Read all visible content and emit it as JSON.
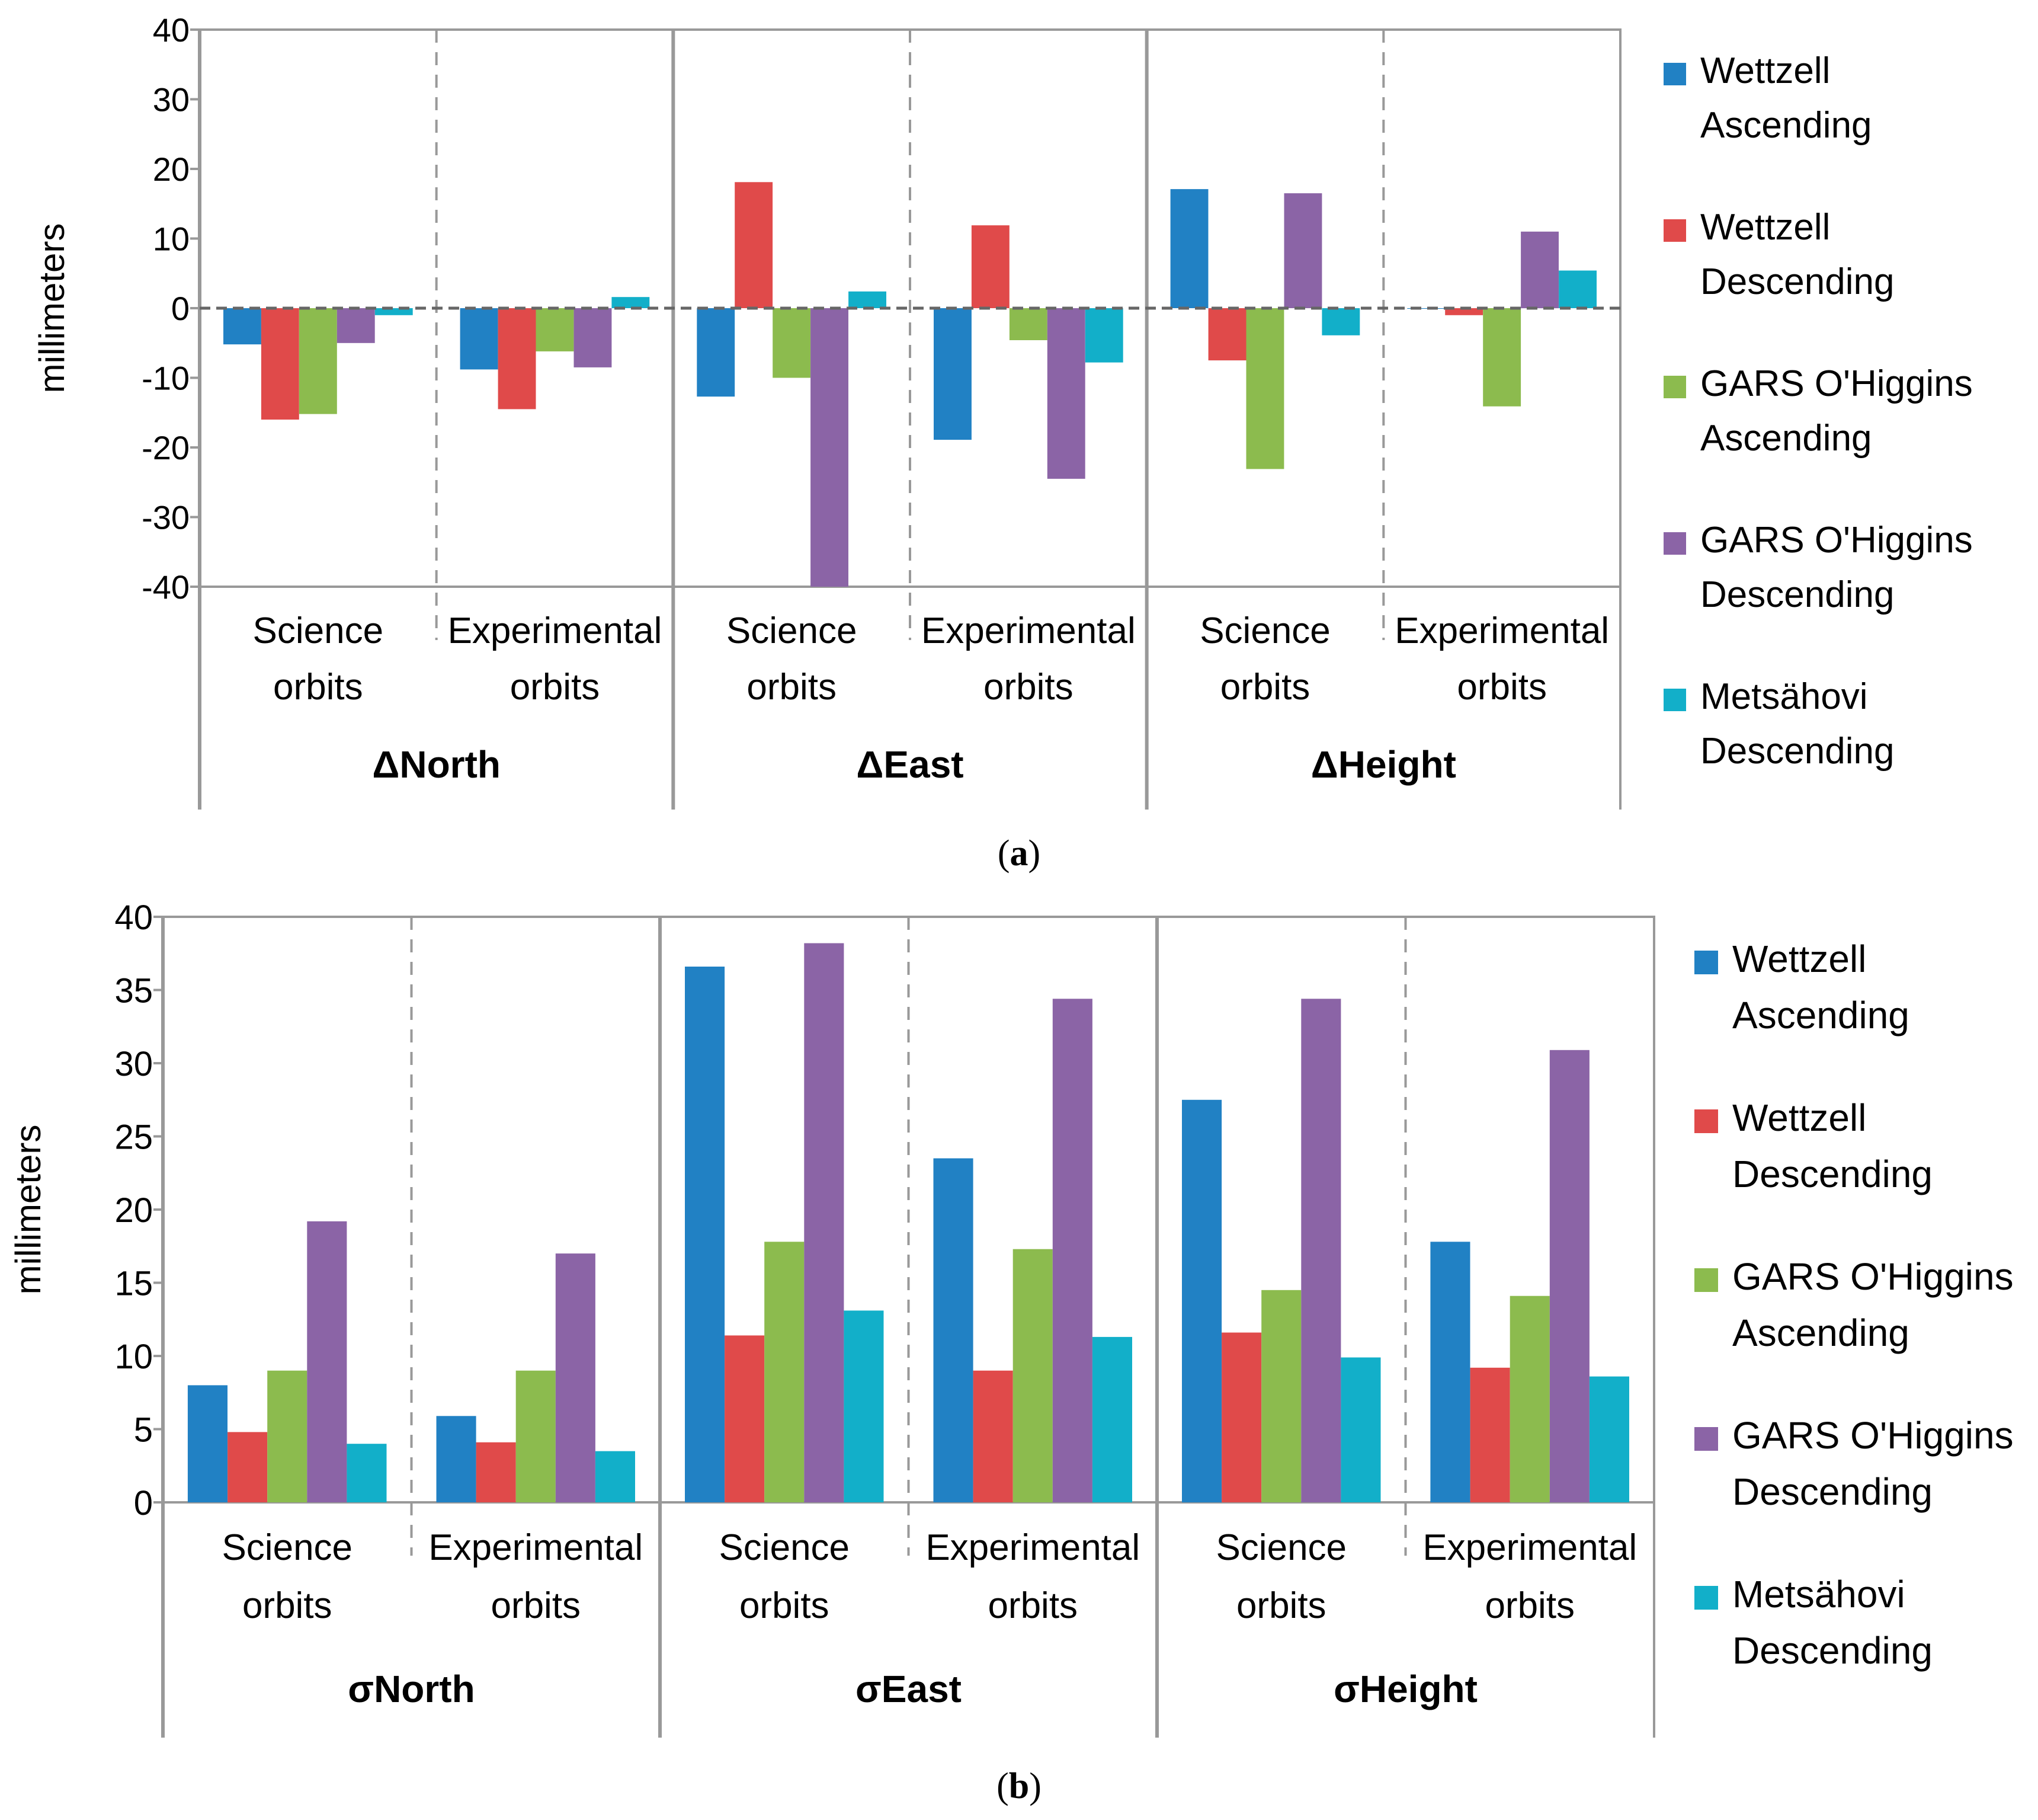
{
  "colors": {
    "series": [
      "#2181C4",
      "#E04A4A",
      "#8CBB4E",
      "#8B64A6",
      "#12AFC9"
    ],
    "grid": "#999999",
    "axis": "#666666",
    "text": "#000000"
  },
  "series_names": [
    [
      "Wettzell",
      "Ascending"
    ],
    [
      "Wettzell",
      "Descending"
    ],
    [
      "GARS O'Higgins",
      "Ascending"
    ],
    [
      "GARS O'Higgins",
      "Descending"
    ],
    [
      "Metsähovi",
      "Descending"
    ]
  ],
  "panel_a_label": {
    "open": "(",
    "letter": "a",
    "close": ")"
  },
  "panel_b_label": {
    "open": "(",
    "letter": "b",
    "close": ")"
  },
  "chart_data": [
    {
      "panel": "a",
      "type": "bar",
      "ylabel": "millimeters",
      "ylim": [
        -40,
        40
      ],
      "yticks": [
        "40",
        "30",
        "20",
        "10",
        "0",
        "-10",
        "-20",
        "-30",
        "-40"
      ],
      "groups": [
        "ΔNorth",
        "ΔEast",
        "ΔHeight"
      ],
      "subcategories": [
        [
          "Science",
          "orbits"
        ],
        [
          "Experimental",
          "orbits"
        ]
      ],
      "categories": [
        "ΔNorth Science orbits",
        "ΔNorth Experimental orbits",
        "ΔEast Science orbits",
        "ΔEast Experimental orbits",
        "ΔHeight Science orbits",
        "ΔHeight Experimental orbits"
      ],
      "series": [
        {
          "name": "Wettzell Ascending",
          "values": [
            -5.2,
            -8.8,
            -12.7,
            -18.9,
            17.1,
            0.0
          ]
        },
        {
          "name": "Wettzell Descending",
          "values": [
            -16.0,
            -14.5,
            18.1,
            11.9,
            -7.5,
            -1.0
          ]
        },
        {
          "name": "GARS O'Higgins Ascending",
          "values": [
            -15.2,
            -6.2,
            -10.0,
            -4.6,
            -23.1,
            -14.1
          ]
        },
        {
          "name": "GARS O'Higgins Descending",
          "values": [
            -5.0,
            -8.5,
            -40.0,
            -24.5,
            16.5,
            11.0
          ]
        },
        {
          "name": "Metsähovi Descending",
          "values": [
            -1.0,
            1.6,
            2.4,
            -7.8,
            -3.9,
            5.4
          ]
        }
      ]
    },
    {
      "panel": "b",
      "type": "bar",
      "ylabel": "millimeters",
      "ylim": [
        0,
        40
      ],
      "yticks": [
        "40",
        "35",
        "30",
        "25",
        "20",
        "15",
        "10",
        "5",
        "0"
      ],
      "groups": [
        "σNorth",
        "σEast",
        "σHeight"
      ],
      "subcategories": [
        [
          "Science",
          "orbits"
        ],
        [
          "Experimental",
          "orbits"
        ]
      ],
      "categories": [
        "σNorth Science orbits",
        "σNorth Experimental orbits",
        "σEast Science orbits",
        "σEast Experimental orbits",
        "σHeight Science orbits",
        "σHeight Experimental orbits"
      ],
      "series": [
        {
          "name": "Wettzell Ascending",
          "values": [
            8.0,
            5.9,
            36.6,
            23.5,
            27.5,
            17.8
          ]
        },
        {
          "name": "Wettzell Descending",
          "values": [
            4.8,
            4.1,
            11.4,
            9.0,
            11.6,
            9.2
          ]
        },
        {
          "name": "GARS O'Higgins Ascending",
          "values": [
            9.0,
            9.0,
            17.8,
            17.3,
            14.5,
            14.1
          ]
        },
        {
          "name": "GARS O'Higgins Descending",
          "values": [
            19.2,
            17.0,
            38.2,
            34.4,
            34.4,
            30.9
          ]
        },
        {
          "name": "Metsähovi Descending",
          "values": [
            4.0,
            3.5,
            13.1,
            11.3,
            9.9,
            8.6
          ]
        }
      ]
    }
  ]
}
